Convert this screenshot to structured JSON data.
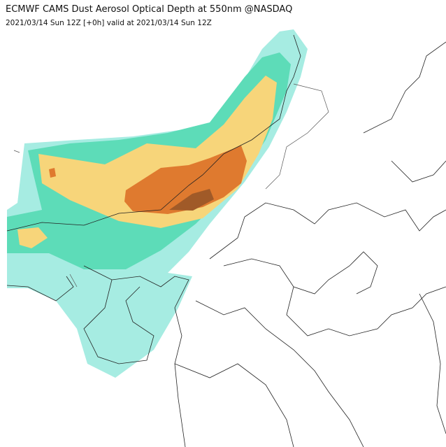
{
  "header": {
    "title": "ECMWF CAMS Dust Aerosol Optical Depth at 550nm @NASDAQ",
    "subtitle": "2021/03/14 Sun 12Z [+0h] valid at 2021/03/14 Sun 12Z"
  }
}
